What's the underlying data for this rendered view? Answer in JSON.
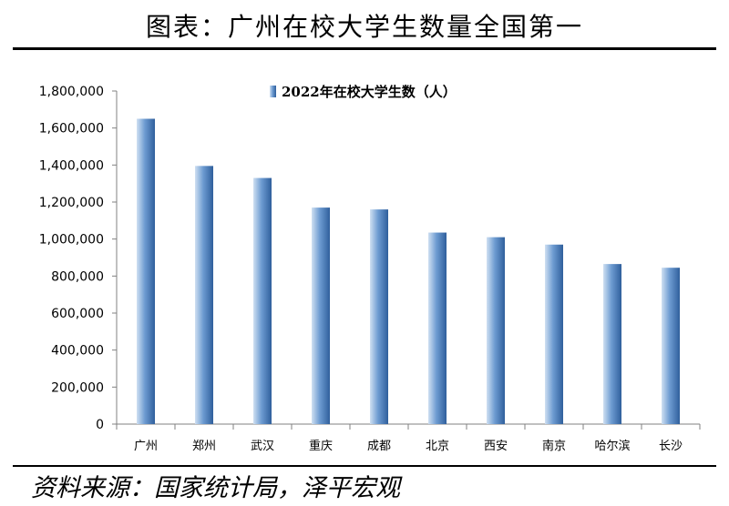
{
  "header": {
    "title": "图表：广州在校大学生数量全国第一"
  },
  "footer": {
    "source": "资料来源：国家统计局，泽平宏观"
  },
  "colors": {
    "bar_light": "#cfe0f2",
    "bar_mid": "#6d9bd1",
    "bar_dark": "#2f5f9c",
    "axis": "#808080"
  },
  "chart_data": {
    "type": "bar",
    "categories": [
      "广州",
      "郑州",
      "武汉",
      "重庆",
      "成都",
      "北京",
      "西安",
      "南京",
      "哈尔滨",
      "长沙"
    ],
    "series": [
      {
        "name": "2022年在校大学生数（人）",
        "values": [
          1650000,
          1395000,
          1330000,
          1170000,
          1160000,
          1035000,
          1010000,
          970000,
          865000,
          845000
        ]
      }
    ],
    "ylim": [
      0,
      1800000
    ],
    "yticks": [
      0,
      200000,
      400000,
      600000,
      800000,
      1000000,
      1200000,
      1400000,
      1600000,
      1800000
    ],
    "ytick_labels": [
      "0",
      "200,000",
      "400,000",
      "600,000",
      "800,000",
      "1,000,000",
      "1,200,000",
      "1,400,000",
      "1,600,000",
      "1,800,000"
    ],
    "legend": "top-center",
    "grid": false
  }
}
